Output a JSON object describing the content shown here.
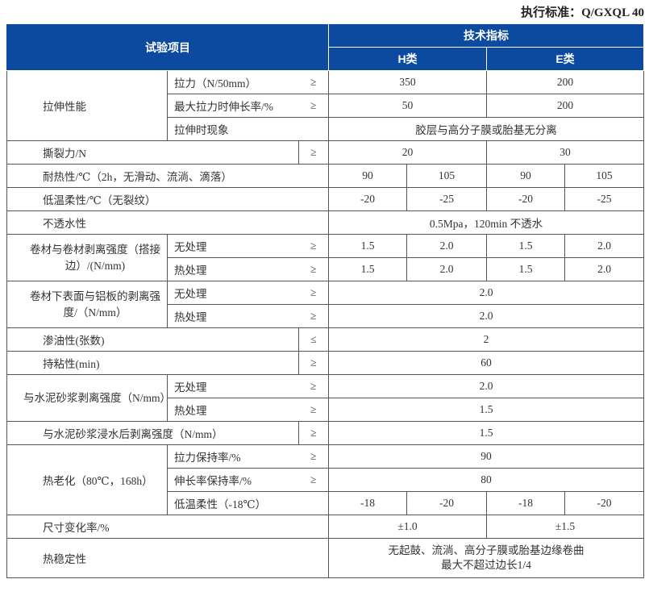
{
  "standard": "执行标准：Q/GXQL 40",
  "header": {
    "item": "试验项目",
    "spec": "技术指标",
    "h_class": "H类",
    "e_class": "E类"
  },
  "colors": {
    "header_bg": "#0b4a9e",
    "header_text": "#ffffff",
    "border": "#555555"
  },
  "rows": [
    [
      "拉伸性能",
      "拉力（N/50mm）",
      "≥",
      "350",
      "200"
    ],
    [
      "最大拉力时伸长率/%",
      "≥",
      "50",
      "200"
    ],
    [
      "拉伸时现象",
      "胶层与高分子膜或胎基无分离"
    ],
    [
      "撕裂力/N",
      "≥",
      "20",
      "30"
    ],
    [
      "耐热性/℃（2h，无滑动、流淌、滴落）",
      "90",
      "105",
      "90",
      "105"
    ],
    [
      "低温柔性/℃（无裂纹）",
      "-20",
      "-25",
      "-20",
      "-25"
    ],
    [
      "不透水性",
      "0.5Mpa，120min 不透水"
    ],
    [
      "卷材与卷材剥离强度（搭接边）/(N/mm)",
      "无处理",
      "≥",
      "1.5",
      "2.0",
      "1.5",
      "2.0"
    ],
    [
      "热处理",
      "≥",
      "1.5",
      "2.0",
      "1.5",
      "2.0"
    ],
    [
      "卷材下表面与铝板的剥离强度/（N/mm）",
      "无处理",
      "≥",
      "2.0"
    ],
    [
      "热处理",
      "≥",
      "2.0"
    ],
    [
      "渗油性(张数)",
      "≤",
      "2"
    ],
    [
      "持粘性(min)",
      "≥",
      "60"
    ],
    [
      "与水泥砂浆剥离强度（N/mm）",
      "无处理",
      "≥",
      "2.0"
    ],
    [
      "热处理",
      "≥",
      "1.5"
    ],
    [
      "与水泥砂浆浸水后剥离强度（N/mm）",
      "≥",
      "1.5"
    ],
    [
      "热老化（80℃，168h）",
      "拉力保持率/%",
      "≥",
      "90"
    ],
    [
      "伸长率保持率/%",
      "≥",
      "80"
    ],
    [
      "低温柔性（-18℃）",
      "-18",
      "-20",
      "-18",
      "-20"
    ],
    [
      "尺寸变化率/%",
      "±1.0",
      "±1.5"
    ],
    [
      "热稳定性",
      "无起鼓、流淌、高分子膜或胎基边缘卷曲\n最大不超过边长1/4"
    ]
  ]
}
